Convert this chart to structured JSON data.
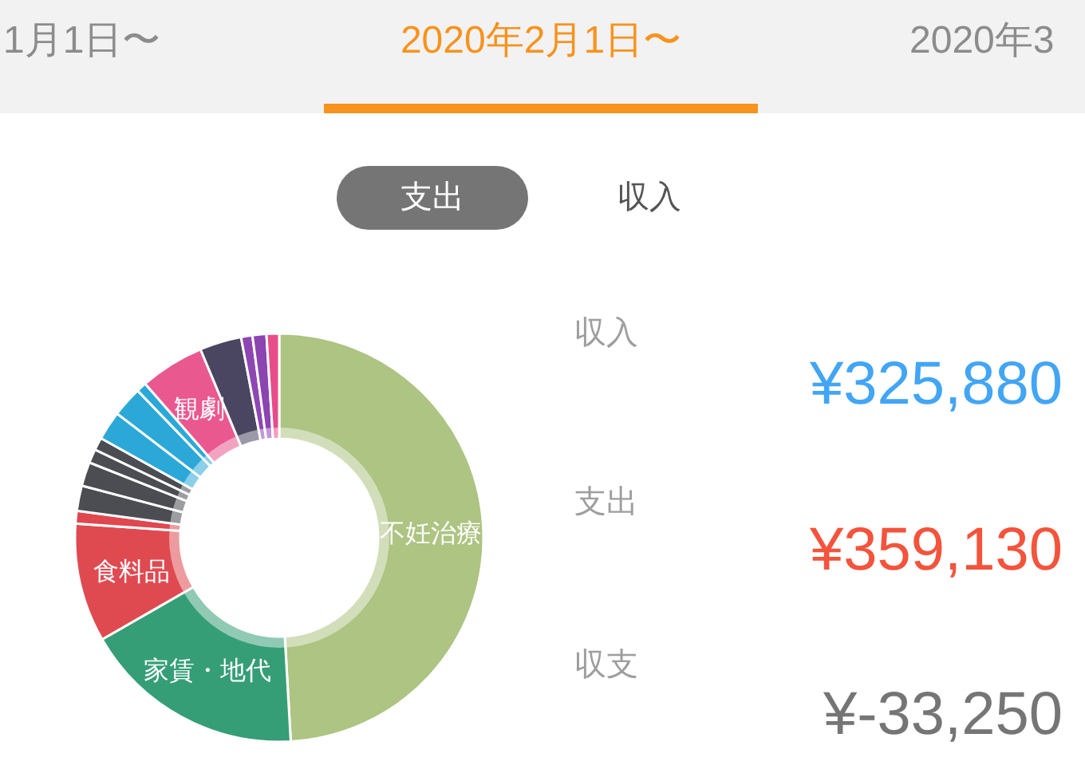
{
  "chart_data": {
    "type": "donut",
    "title": "2020年2月1日〜",
    "annotations": [
      "1月1日〜",
      "2020年3",
      "支出",
      "収入",
      "収入",
      "¥325,880",
      "支出",
      "¥359,130",
      "収支",
      "¥-33,250"
    ],
    "categories": [
      "不妊治療",
      "家賃・地代",
      "食料品",
      null,
      null,
      null,
      null,
      null,
      null,
      null,
      null,
      "観劇",
      null,
      null,
      null,
      null
    ],
    "values": [
      49.1,
      17.6,
      9.4,
      1.0,
      2.0,
      1.9,
      1.1,
      1.0,
      2.3,
      2.4,
      0.8,
      5.1,
      3.3,
      0.9,
      1.1,
      1.0
    ],
    "colors": [
      "#adc482",
      "#359e77",
      "#df4a51",
      "#e0474f",
      "#4b4d52",
      "#4b4d52",
      "#4b4d52",
      "#4b4d52",
      "#2ca8d8",
      "#2ca8d8",
      "#2ca8d8",
      "#ea5890",
      "#4a4560",
      "#8e47b2",
      "#8b44b0",
      "#e84d8a"
    ]
  }
}
